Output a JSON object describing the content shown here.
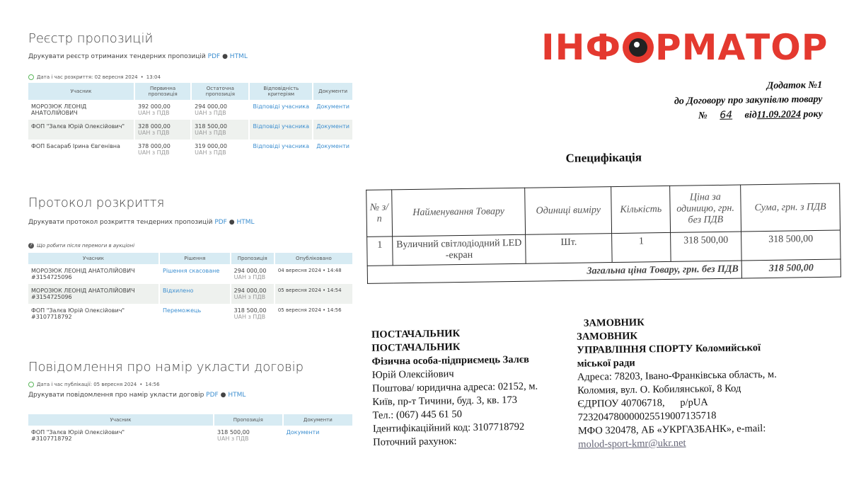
{
  "logo": {
    "text": "ІНФОРМАТОР",
    "color": "#e4392f"
  },
  "register": {
    "title": "Реєстр пропозицій",
    "print_text": "Друкувати реєстр отриманих тендерних пропозицій",
    "pdf": "PDF",
    "sep": "●",
    "html": "HTML",
    "date_label": "Дата і час розкриття: 02 вересня 2024",
    "time": "13:04",
    "headers": [
      "Учасник",
      "Первинна пропозиція",
      "Остаточна пропозиція",
      "Відповідність критеріям",
      "Документи"
    ],
    "rows": [
      {
        "name": "МОРОЗЮК ЛЕОНІД АНАТОЛІЙОВИЧ",
        "initial": "392 000,00",
        "final": "294 000,00",
        "vat": "UAH з ПДВ",
        "criteria": "Відповіді учасника",
        "docs": "Документи"
      },
      {
        "name": "ФОП \"Залєв Юрій Олексійович\"",
        "initial": "328 000,00",
        "final": "318 500,00",
        "vat": "UAH з ПДВ",
        "criteria": "Відповіді учасника",
        "docs": "Документи"
      },
      {
        "name": "ФОП Басараб Ірина Євгенівна",
        "initial": "378 000,00",
        "final": "319 000,00",
        "vat": "UAH з ПДВ",
        "criteria": "Відповіді учасника",
        "docs": "Документи"
      }
    ]
  },
  "protocol": {
    "title": "Протокол розкриття",
    "print_text": "Друкувати протокол розкриття тендерних пропозицій",
    "pdf": "PDF",
    "sep": "●",
    "html": "HTML",
    "help": "Що робити після перемоги в аукціоні",
    "headers": [
      "Учасник",
      "Рішення",
      "Пропозиція",
      "Опубліковано"
    ],
    "rows": [
      {
        "name": "МОРОЗЮК ЛЕОНІД АНАТОЛІЙОВИЧ",
        "id": "#3154725096",
        "decision": "Рішення скасоване",
        "amount": "294 000,00",
        "vat": "UAH з ПДВ",
        "date": "04 вересня 2024",
        "time": "14:48"
      },
      {
        "name": "МОРОЗЮК ЛЕОНІД АНАТОЛІЙОВИЧ",
        "id": "#3154725096",
        "decision": "Відхилено",
        "amount": "294 000,00",
        "vat": "UAH з ПДВ",
        "date": "05 вересня 2024",
        "time": "14:54"
      },
      {
        "name": "ФОП \"Залєв Юрій Олексійович\"",
        "id": "#3107718792",
        "decision": "Переможець",
        "amount": "318 500,00",
        "vat": "UAH з ПДВ",
        "date": "05 вересня 2024",
        "time": "14:56"
      }
    ]
  },
  "notice": {
    "title": "Повідомлення про намір укласти договір",
    "date_label": "Дата і час публікації: 05 вересня 2024",
    "time": "14:56",
    "print_text": "Друкувати повідомлення про намір укласти договір",
    "pdf": "PDF",
    "sep": "●",
    "html": "HTML",
    "headers": [
      "Учасник",
      "Пропозиція",
      "Документи"
    ],
    "rows": [
      {
        "name": "ФОП \"Залєв Юрій Олексійович\"",
        "id": "#3107718792",
        "amount": "318 500,00",
        "vat": "UAH з ПДВ",
        "docs": "Документи"
      }
    ]
  },
  "document": {
    "annex": "Додаток №1",
    "contract": "до Договору про закупівлю товару",
    "no_label": "№",
    "no": "64",
    "date_label": "від",
    "date": "11.09.2024",
    "year": "року",
    "title": "Специфікація",
    "headers": [
      "№ з/п",
      "Найменування Товару",
      "Одиниці виміру",
      "Кількість",
      "Ціна за одиницю, грн. без ПДВ",
      "Сума, грн. з ПДВ"
    ],
    "row": {
      "n": "1",
      "name": "Вуличний світлодіодний LED -екран",
      "unit": "Шт.",
      "qty": "1",
      "price": "318 500,00",
      "sum": "318 500,00"
    },
    "total_label": "Загальна ціна Товару, грн. без ПДВ",
    "total": "318 500,00",
    "supplier": [
      "ПОСТАЧАЛЬНИК",
      "ПОСТАЧАЛЬНИК",
      "Фізична особа-підприємець Залєв",
      "Юрій Олексійович",
      "Поштова/ юридична адреса: 02152, м.",
      "Київ, пр-т Тичини, буд. 3, кв. 173",
      "Тел.: (067) 445 61 50",
      "Ідентифікаційний код: 3107718792",
      "Поточний рахунок:"
    ],
    "customer": [
      "ЗАМОВНИК",
      "ЗАМОВНИК",
      "УПРАВЛІННЯ СПОРТУ Коломийської",
      "міської ради",
      "Адреса: 78203, Івано-Франківська область, м.",
      "Коломия, вул. О. Кобилянської, 8 Код",
      "ЄДРПОУ 40706718,      р/рUA",
      "723204780000025519007135718",
      "МФО 320478, АБ «УКРГАЗБАНК», e-mail:",
      "molod-sport-kmr@ukr.net"
    ]
  }
}
